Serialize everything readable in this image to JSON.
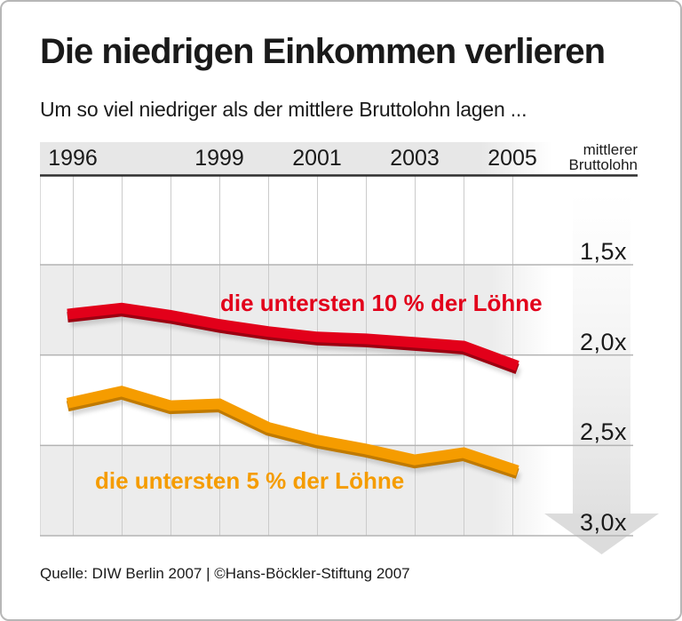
{
  "chart_data": {
    "type": "line",
    "title": "Die niedrigen Einkommen verlieren",
    "subtitle": "Um so viel niedriger als der mittlere Bruttolohn lagen ...",
    "x": [
      1996,
      1997,
      1998,
      1999,
      2000,
      2001,
      2002,
      2003,
      2004,
      2005
    ],
    "x_tick_labels": [
      "1996",
      "1999",
      "2001",
      "2003",
      "2005"
    ],
    "y_axis": {
      "unit_line1": "mittlerer",
      "unit_line2": "Bruttolohn",
      "tick_labels": [
        "1,5x",
        "2,0x",
        "2,5x",
        "3,0x"
      ],
      "tick_values": [
        1.5,
        2.0,
        2.5,
        3.0
      ],
      "range": [
        1.5,
        3.0
      ],
      "inverted": true,
      "note": "axis points downward: higher multiple of the median gross wage = lower relative income"
    },
    "series": [
      {
        "label": "die untersten 10 % der Löhne",
        "color": "#e2001a",
        "shade": "#9c0011",
        "values": [
          1.77,
          1.74,
          1.78,
          1.83,
          1.87,
          1.9,
          1.91,
          1.93,
          1.95,
          2.05
        ]
      },
      {
        "label": "die untersten 5 % der Löhne",
        "color": "#f59c00",
        "shade": "#c07a00",
        "values": [
          2.26,
          2.2,
          2.28,
          2.27,
          2.4,
          2.47,
          2.52,
          2.58,
          2.54,
          2.63
        ]
      }
    ],
    "source": "Quelle: DIW Berlin 2007 | ©Hans-Böckler-Stiftung 2007"
  }
}
